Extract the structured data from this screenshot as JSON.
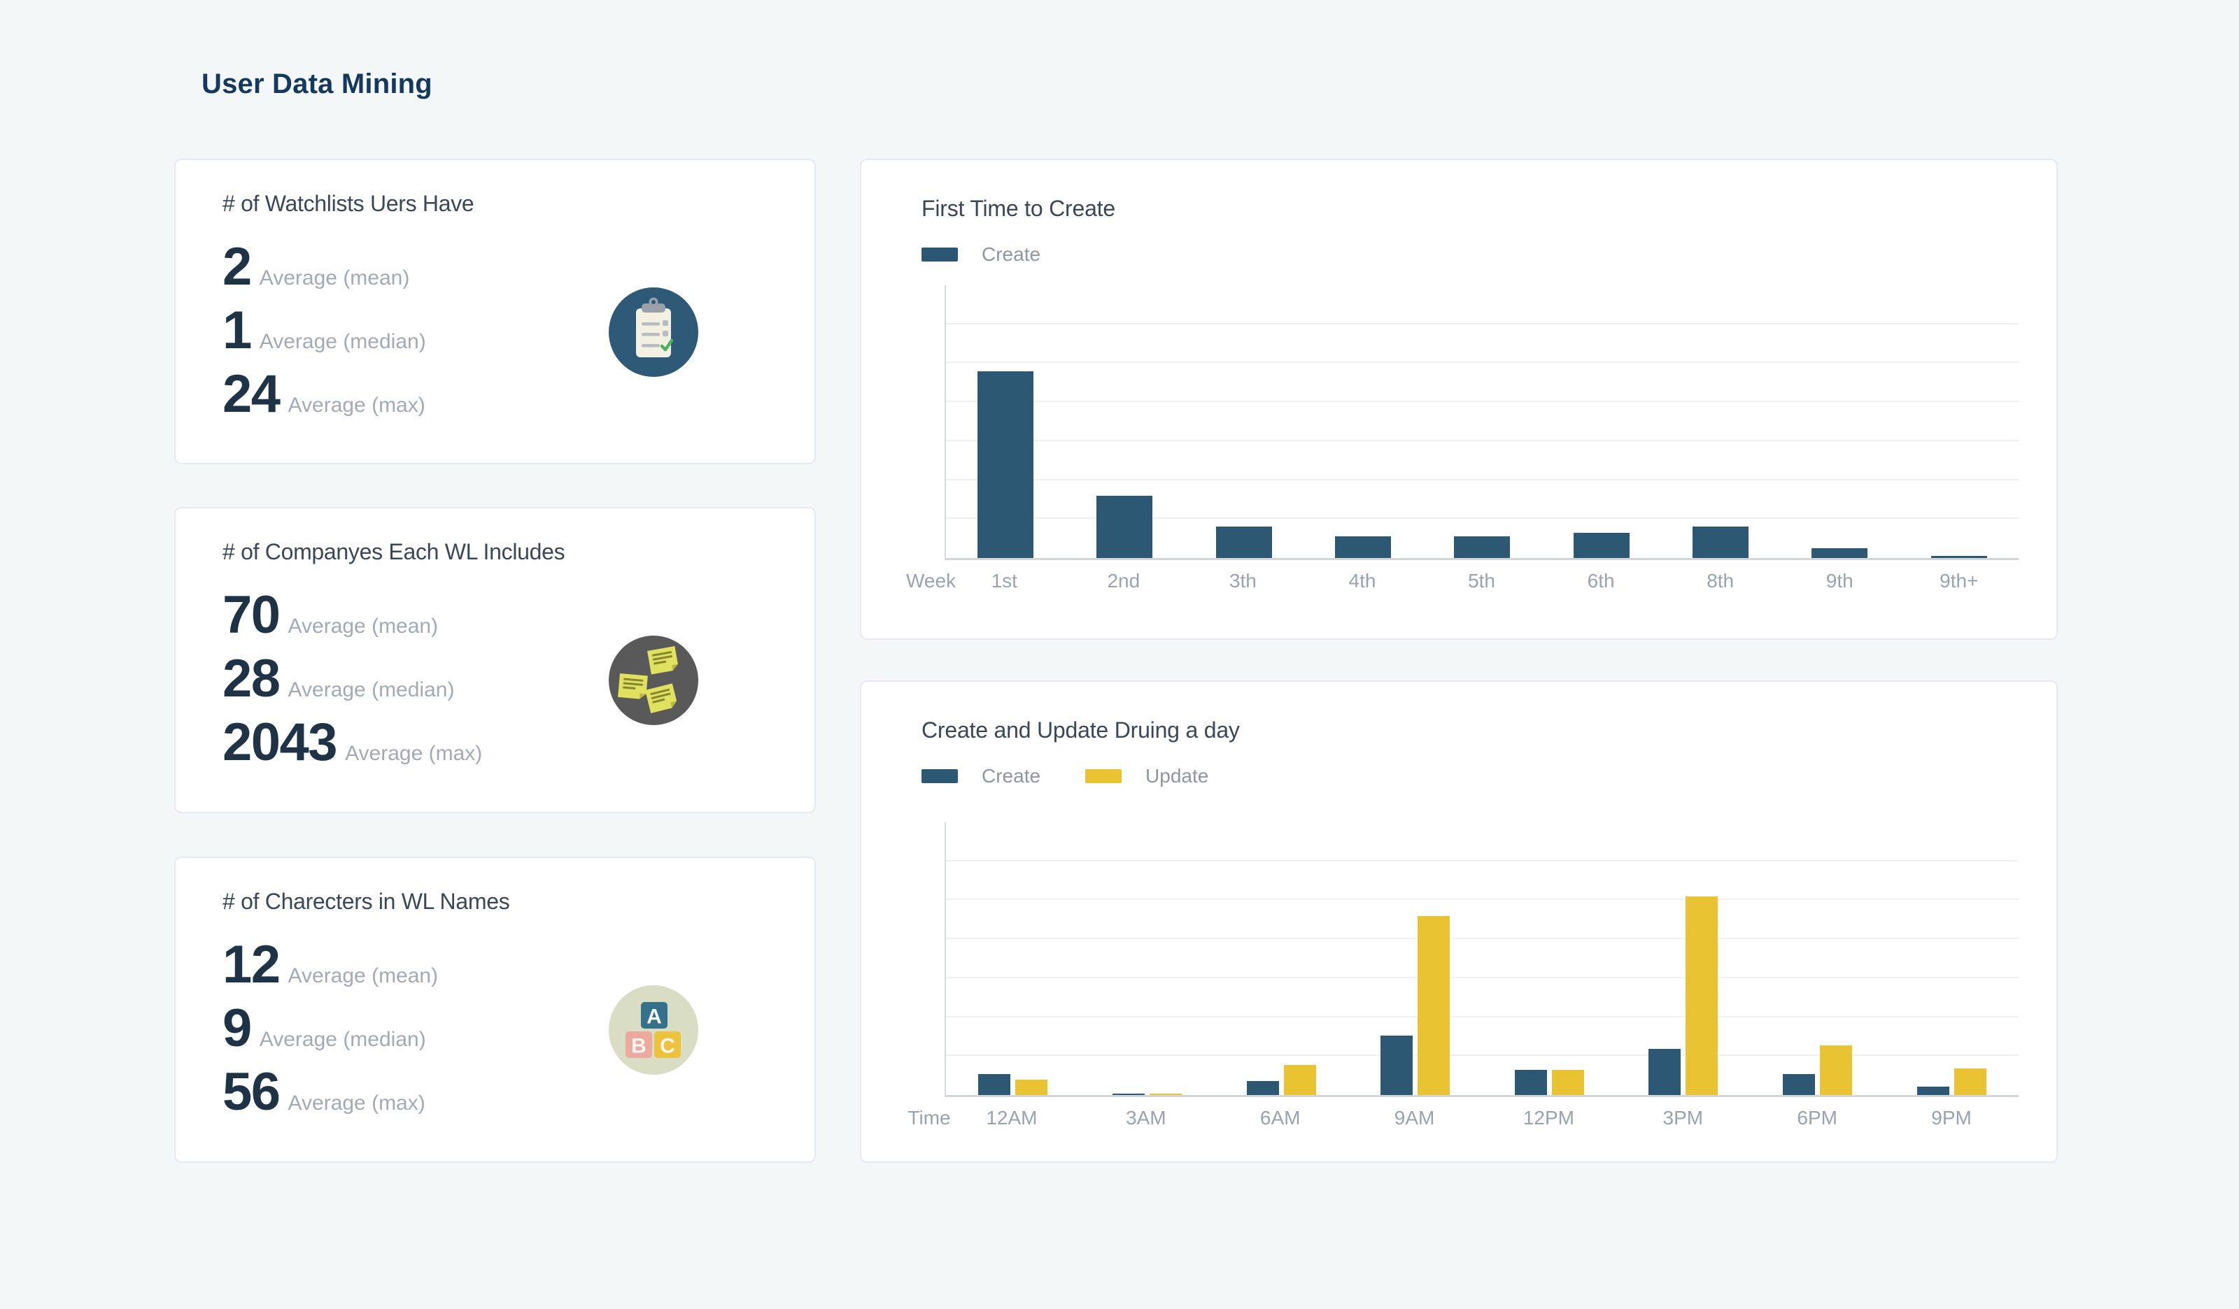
{
  "page": {
    "title": "User Data Mining",
    "background": "#f4f7f8",
    "accent_navy": "#2d5873",
    "accent_yellow": "#e9c331"
  },
  "stat_cards": [
    {
      "title": "# of Watchlists Uers Have",
      "icon": "clipboard-checklist-icon",
      "icon_bg": "#2e5a78",
      "stats": [
        {
          "value": "2",
          "label": "Average (mean)"
        },
        {
          "value": "1",
          "label": "Average (median)"
        },
        {
          "value": "24",
          "label": "Average (max)"
        }
      ]
    },
    {
      "title": "# of Companyes Each WL Includes",
      "icon": "sticky-notes-icon",
      "icon_bg": "#595959",
      "stats": [
        {
          "value": "70",
          "label": "Average (mean)"
        },
        {
          "value": "28",
          "label": "Average (median)"
        },
        {
          "value": "2043",
          "label": "Average (max)"
        }
      ]
    },
    {
      "title": "# of Charecters in WL Names",
      "icon": "abc-blocks-icon",
      "icon_bg": "#d9ddc3",
      "stats": [
        {
          "value": "12",
          "label": "Average (mean)"
        },
        {
          "value": "9",
          "label": "Average (median)"
        },
        {
          "value": "56",
          "label": "Average (max)"
        }
      ]
    }
  ],
  "chart_data": [
    {
      "type": "bar",
      "title": "First Time to Create",
      "xlabel": "Week",
      "ylabel": "",
      "categories": [
        "1st",
        "2nd",
        "3th",
        "4th",
        "5th",
        "6th",
        "8th",
        "9th",
        "9th+"
      ],
      "series": [
        {
          "name": "Create",
          "color": "#2d5873",
          "values": [
            48,
            16,
            8,
            5.5,
            5.5,
            6.5,
            8,
            2.6,
            0.5
          ]
        }
      ],
      "ylim": [
        0,
        70
      ],
      "gridline_step": 10,
      "y_axis_labeled": false,
      "grid": true,
      "legend_position": "top-left"
    },
    {
      "type": "bar",
      "title": "Create and Update Druing a day",
      "xlabel": "Time",
      "ylabel": "",
      "categories": [
        "12AM",
        "3AM",
        "6AM",
        "9AM",
        "12PM",
        "3PM",
        "6PM",
        "9PM"
      ],
      "series": [
        {
          "name": "Create",
          "color": "#2d5873",
          "values": [
            5.3,
            0.4,
            3.6,
            15.3,
            6.4,
            11.8,
            5.3,
            2.1
          ]
        },
        {
          "name": "Update",
          "color": "#e9c331",
          "values": [
            3.9,
            0.4,
            7.8,
            46,
            6.4,
            51,
            12.8,
            6.8
          ]
        }
      ],
      "ylim": [
        0,
        70
      ],
      "gridline_step": 10,
      "y_axis_labeled": false,
      "grid": true,
      "legend_position": "top-left"
    }
  ]
}
